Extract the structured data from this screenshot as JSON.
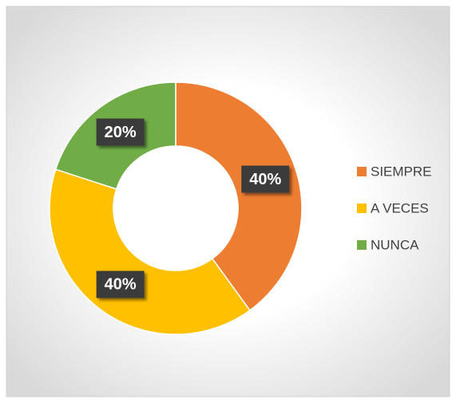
{
  "chart_data": {
    "type": "donut",
    "categories": [
      "SIEMPRE",
      "A VECES",
      "NUNCA"
    ],
    "values": [
      40,
      40,
      20
    ],
    "value_labels": [
      "40%",
      "40%",
      "20%"
    ],
    "colors": [
      "#ED7D31",
      "#FFC000",
      "#70AD47"
    ],
    "legend": "right"
  }
}
